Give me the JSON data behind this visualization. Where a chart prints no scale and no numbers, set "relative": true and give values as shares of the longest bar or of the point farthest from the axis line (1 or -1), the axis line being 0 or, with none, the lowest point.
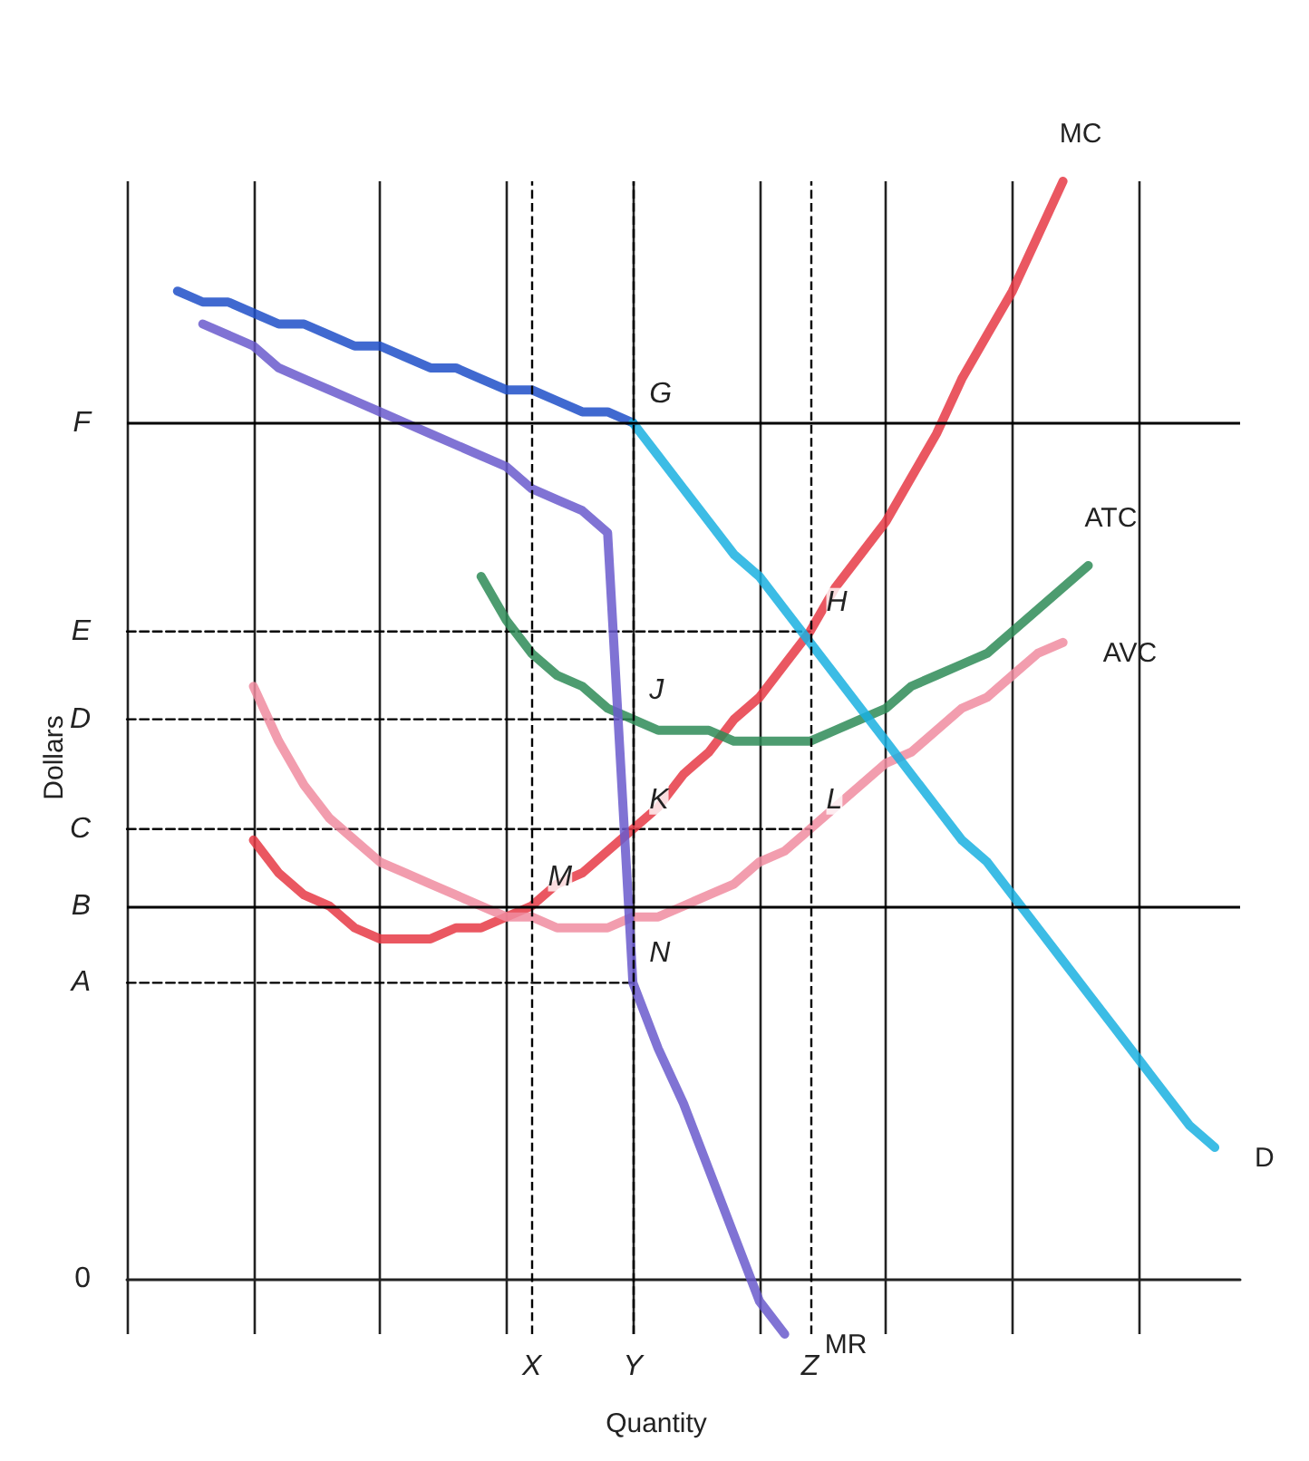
{
  "chart_data": {
    "type": "line",
    "xlabel": "Quantity",
    "ylabel": "Dollars",
    "relative": true,
    "categories": [
      null,
      null,
      null,
      null,
      null,
      null,
      null,
      null,
      null,
      null,
      null,
      null,
      null,
      null,
      null,
      null,
      "X",
      null,
      null,
      null,
      "Y",
      null,
      null,
      null,
      null,
      null,
      null,
      "Z",
      null,
      null,
      null,
      null,
      null,
      null,
      null,
      null,
      null,
      null,
      null,
      null,
      null,
      null,
      null,
      null,
      null
    ],
    "grid": "x",
    "legend": false,
    "marker": "none",
    "series": [
      {
        "name": "MC",
        "color": "#e63a45",
        "values": [
          null,
          null,
          null,
          null,
          null,
          0.4,
          0.37,
          0.35,
          0.34,
          0.32,
          0.31,
          0.31,
          0.31,
          0.32,
          0.32,
          0.33,
          0.34,
          0.36,
          0.37,
          0.39,
          0.41,
          0.43,
          0.46,
          0.48,
          0.51,
          0.53,
          0.56,
          0.59,
          0.63,
          0.66,
          0.69,
          0.73,
          0.77,
          0.82,
          0.86,
          0.9,
          0.95,
          1,
          null,
          null,
          null,
          null,
          null,
          null,
          null
        ]
      },
      {
        "name": "ATC",
        "color": "#2e8b57",
        "values": [
          null,
          null,
          null,
          null,
          null,
          null,
          null,
          null,
          null,
          null,
          null,
          null,
          null,
          null,
          0.64,
          0.6,
          0.57,
          0.55,
          0.54,
          0.52,
          0.51,
          0.5,
          0.5,
          0.5,
          0.49,
          0.49,
          0.49,
          0.49,
          0.5,
          0.51,
          0.52,
          0.54,
          0.55,
          0.56,
          0.57,
          0.59,
          0.61,
          0.63,
          0.65,
          null,
          null,
          null,
          null,
          null,
          null
        ]
      },
      {
        "name": "AVC",
        "color": "#f08ca0",
        "values": [
          null,
          null,
          null,
          null,
          null,
          0.54,
          0.49,
          0.45,
          0.42,
          0.4,
          0.38,
          0.37,
          0.36,
          0.35,
          0.34,
          0.33,
          0.33,
          0.32,
          0.32,
          0.32,
          0.33,
          0.33,
          0.34,
          0.35,
          0.36,
          0.38,
          0.39,
          0.41,
          0.43,
          0.45,
          0.47,
          0.48,
          0.5,
          0.52,
          0.53,
          0.55,
          0.57,
          0.58,
          null,
          null,
          null,
          null,
          null,
          null,
          null
        ]
      },
      {
        "color": "#1f4fc8",
        "values": [
          null,
          null,
          0.9,
          0.89,
          0.89,
          0.88,
          0.87,
          0.87,
          0.86,
          0.85,
          0.85,
          0.84,
          0.83,
          0.83,
          0.82,
          0.81,
          0.81,
          0.8,
          0.79,
          0.79,
          0.78,
          null,
          null,
          null,
          null,
          null,
          null,
          null,
          null,
          null,
          null,
          null,
          null,
          null,
          null,
          null,
          null,
          null,
          null,
          null,
          null,
          null,
          null,
          null,
          null
        ]
      },
      {
        "name": "D",
        "color": "#1ab0e0",
        "values": [
          null,
          null,
          null,
          null,
          null,
          null,
          null,
          null,
          null,
          null,
          null,
          null,
          null,
          null,
          null,
          null,
          null,
          null,
          null,
          null,
          0.78,
          0.75,
          0.72,
          0.69,
          0.66,
          0.64,
          0.61,
          0.58,
          0.55,
          0.52,
          0.49,
          0.46,
          0.43,
          0.4,
          0.38,
          0.35,
          0.32,
          0.29,
          0.26,
          0.23,
          0.2,
          0.17,
          0.14,
          0.12,
          null
        ]
      },
      {
        "name": "MR",
        "color": "#6a5acd",
        "values": [
          null,
          null,
          null,
          0.87,
          0.86,
          0.85,
          0.83,
          0.82,
          0.81,
          0.8,
          0.79,
          0.78,
          0.77,
          0.76,
          0.75,
          0.74,
          0.72,
          0.71,
          0.7,
          0.68,
          0.27,
          0.21,
          0.16,
          0.1,
          0.04,
          -0.02,
          -0.05,
          null,
          null,
          null,
          null,
          null,
          null,
          null,
          null,
          null,
          null,
          null,
          null,
          null,
          null,
          null,
          null,
          null,
          null
        ]
      },
      {
        "name": "E",
        "color": "#000000",
        "line_style": "dashed",
        "values": [
          0.59,
          0.59,
          0.59,
          0.59,
          0.59,
          0.59,
          0.59,
          0.59,
          0.59,
          0.59,
          0.59,
          0.59,
          0.59,
          0.59,
          0.59,
          0.59,
          0.59,
          0.59,
          0.59,
          0.59,
          0.59,
          0.59,
          0.59,
          0.59,
          0.59,
          0.59,
          0.59,
          0.59,
          null,
          null,
          null,
          null,
          null,
          null,
          null,
          null,
          null,
          null,
          null,
          null,
          null,
          null,
          null,
          null,
          null
        ]
      },
      {
        "name": "D",
        "color": "#000000",
        "line_style": "dashed",
        "values": [
          0.51,
          0.51,
          0.51,
          0.51,
          0.51,
          0.51,
          0.51,
          0.51,
          0.51,
          0.51,
          0.51,
          0.51,
          0.51,
          0.51,
          0.51,
          0.51,
          0.51,
          0.51,
          0.51,
          0.51,
          0.51,
          null,
          null,
          null,
          null,
          null,
          null,
          null,
          null,
          null,
          null,
          null,
          null,
          null,
          null,
          null,
          null,
          null,
          null,
          null,
          null,
          null,
          null,
          null,
          null
        ]
      },
      {
        "name": "C",
        "color": "#000000",
        "line_style": "dashed",
        "values": [
          0.41,
          0.41,
          0.41,
          0.41,
          0.41,
          0.41,
          0.41,
          0.41,
          0.41,
          0.41,
          0.41,
          0.41,
          0.41,
          0.41,
          0.41,
          0.41,
          0.41,
          0.41,
          0.41,
          0.41,
          0.41,
          0.41,
          0.41,
          0.41,
          0.41,
          0.41,
          0.41,
          0.41,
          null,
          null,
          null,
          null,
          null,
          null,
          null,
          null,
          null,
          null,
          null,
          null,
          null,
          null,
          null,
          null,
          null
        ]
      },
      {
        "name": "A",
        "color": "#000000",
        "line_style": "dashed",
        "values": [
          0.27,
          0.27,
          0.27,
          0.27,
          0.27,
          0.27,
          0.27,
          0.27,
          0.27,
          0.27,
          0.27,
          0.27,
          0.27,
          0.27,
          0.27,
          0.27,
          0.27,
          0.27,
          0.27,
          0.27,
          0.27,
          null,
          null,
          null,
          null,
          null,
          null,
          null,
          null,
          null,
          null,
          null,
          null,
          null,
          null,
          null,
          null,
          null,
          null,
          null,
          null,
          null,
          null,
          null,
          null
        ]
      }
    ],
    "ref_lines": [
      {
        "axis": "y",
        "value": 0.78,
        "label": "F",
        "color": "#000000",
        "line_style": "solid"
      },
      {
        "axis": "y",
        "value": 0.34,
        "label": "B",
        "color": "#000000",
        "line_style": "solid"
      },
      {
        "axis": "x",
        "value": "X",
        "color": "#000000",
        "line_style": "dashed"
      },
      {
        "axis": "x",
        "value": "Y",
        "color": "#000000",
        "line_style": "dashed"
      },
      {
        "axis": "x",
        "value": "Z",
        "color": "#000000",
        "line_style": "dashed"
      }
    ],
    "annotations": [
      "0",
      {
        "text": "G",
        "x": "Y",
        "y": 0.78
      },
      {
        "text": "H",
        "x": "Z",
        "y": 0.59
      },
      {
        "text": "J",
        "x": "Y",
        "y": 0.51
      },
      {
        "text": "K",
        "x": "Y",
        "y": 0.41
      },
      {
        "text": "L",
        "x": "Z",
        "y": 0.41
      },
      {
        "text": "M",
        "x": "X",
        "y": 0.34
      },
      {
        "text": "N",
        "x": "Y",
        "y": 0.27
      }
    ]
  }
}
